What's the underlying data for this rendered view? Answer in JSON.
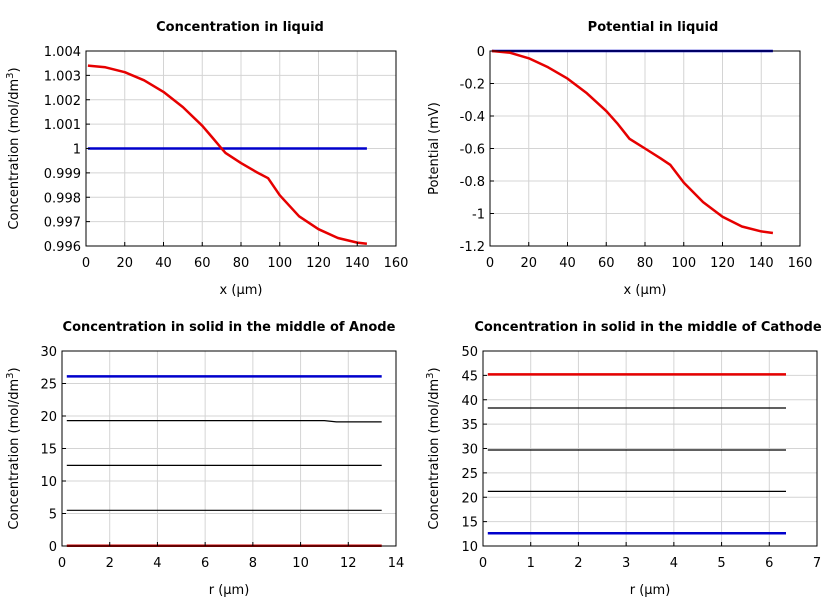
{
  "chart_data": [
    {
      "type": "line",
      "title": "Concentration in liquid",
      "xlabel": "x (μm)",
      "ylabel": "Concentration (mol/dm3)",
      "ylabel_base": "Concentration (mol/dm",
      "ylabel_sup": "3",
      "ylabel_tail": ")",
      "xlim": [
        0,
        160
      ],
      "ylim": [
        0.996,
        1.004
      ],
      "xticks": [
        0,
        20,
        40,
        60,
        80,
        100,
        120,
        140,
        160
      ],
      "xtick_labels": [
        "0",
        "20",
        "40",
        "60",
        "80",
        "100",
        "120",
        "140",
        "160"
      ],
      "yticks": [
        0.996,
        0.997,
        0.998,
        0.999,
        1.0,
        1.001,
        1.002,
        1.003,
        1.004
      ],
      "ytick_labels": [
        "0.996",
        "0.997",
        "0.998",
        "0.999",
        "1",
        "1.001",
        "1.002",
        "1.003",
        "1.004"
      ],
      "grid": true,
      "series": [
        {
          "color": "#0000cc",
          "width": 2.5,
          "x": [
            1,
            145
          ],
          "y": [
            1.0,
            1.0
          ]
        },
        {
          "color": "#e60000",
          "width": 2.5,
          "x": [
            1,
            10,
            20,
            30,
            40,
            50,
            60,
            65,
            70,
            72,
            80,
            88,
            94,
            100,
            110,
            120,
            130,
            140,
            145
          ],
          "y": [
            1.0034,
            1.00333,
            1.00313,
            1.0028,
            1.00232,
            1.0017,
            1.00093,
            1.00047,
            1.0,
            0.99982,
            0.9994,
            0.99903,
            0.99878,
            0.99808,
            0.99722,
            0.99669,
            0.99633,
            0.99614,
            0.99609
          ]
        }
      ]
    },
    {
      "type": "line",
      "title": "Potential in liquid",
      "xlabel": "x (μm)",
      "ylabel": "Potential (mV)",
      "xlim": [
        0,
        160
      ],
      "ylim": [
        -1.2,
        0
      ],
      "xticks": [
        0,
        20,
        40,
        60,
        80,
        100,
        120,
        140,
        160
      ],
      "xtick_labels": [
        "0",
        "20",
        "40",
        "60",
        "80",
        "100",
        "120",
        "140",
        "160"
      ],
      "yticks": [
        -1.2,
        -1.0,
        -0.8,
        -0.6,
        -0.4,
        -0.2,
        0
      ],
      "ytick_labels": [
        "-1.2",
        "-1",
        "-0.8",
        "-0.6",
        "-0.4",
        "-0.2",
        "0"
      ],
      "grid": true,
      "series": [
        {
          "color": "#0000cc",
          "width": 2.5,
          "x": [
            1,
            146
          ],
          "y": [
            0,
            0
          ]
        },
        {
          "color": "#e60000",
          "width": 2.5,
          "x": [
            1,
            10,
            20,
            30,
            40,
            50,
            60,
            66,
            72,
            80,
            88,
            93,
            100,
            110,
            120,
            130,
            140,
            146
          ],
          "y": [
            0,
            -0.01,
            -0.045,
            -0.1,
            -0.17,
            -0.26,
            -0.37,
            -0.45,
            -0.54,
            -0.6,
            -0.66,
            -0.7,
            -0.81,
            -0.93,
            -1.02,
            -1.08,
            -1.11,
            -1.12
          ]
        }
      ]
    },
    {
      "type": "line",
      "title": "Concentration in solid in the middle of Anode",
      "xlabel": "r (μm)",
      "ylabel": "Concentration (mol/dm3)",
      "ylabel_base": "Concentration (mol/dm",
      "ylabel_sup": "3",
      "ylabel_tail": ")",
      "xlim": [
        0,
        14
      ],
      "ylim": [
        0,
        30
      ],
      "xticks": [
        0,
        2,
        4,
        6,
        8,
        10,
        12,
        14
      ],
      "xtick_labels": [
        "0",
        "2",
        "4",
        "6",
        "8",
        "10",
        "12",
        "14"
      ],
      "yticks": [
        0,
        5,
        10,
        15,
        20,
        25,
        30
      ],
      "ytick_labels": [
        "0",
        "5",
        "10",
        "15",
        "20",
        "25",
        "30"
      ],
      "grid": true,
      "series": [
        {
          "color": "#0000cc",
          "width": 2.5,
          "x": [
            0.2,
            13.4
          ],
          "y": [
            26.1,
            26.1
          ]
        },
        {
          "color": "#000000",
          "width": 1.2,
          "x": [
            0.2,
            11.0,
            11.5,
            13.4
          ],
          "y": [
            19.3,
            19.3,
            19.1,
            19.1
          ]
        },
        {
          "color": "#000000",
          "width": 1.2,
          "x": [
            0.2,
            13.4
          ],
          "y": [
            12.4,
            12.4
          ]
        },
        {
          "color": "#000000",
          "width": 1.2,
          "x": [
            0.2,
            13.4
          ],
          "y": [
            5.5,
            5.5
          ]
        },
        {
          "color": "#cc0000",
          "width": 2.5,
          "x": [
            0.2,
            13.4
          ],
          "y": [
            0.05,
            0.05
          ]
        }
      ]
    },
    {
      "type": "line",
      "title": "Concentration in solid in the middle of Cathode",
      "xlabel": "r (μm)",
      "ylabel": "Concentration (mol/dm3)",
      "ylabel_base": "Concentration (mol/dm",
      "ylabel_sup": "3",
      "ylabel_tail": ")",
      "xlim": [
        0,
        7
      ],
      "ylim": [
        10,
        50
      ],
      "xticks": [
        0,
        1,
        2,
        3,
        4,
        5,
        6,
        7
      ],
      "xtick_labels": [
        "0",
        "1",
        "2",
        "3",
        "4",
        "5",
        "6",
        "7"
      ],
      "yticks": [
        10,
        15,
        20,
        25,
        30,
        35,
        40,
        45,
        50
      ],
      "ytick_labels": [
        "10",
        "15",
        "20",
        "25",
        "30",
        "35",
        "40",
        "45",
        "50"
      ],
      "grid": true,
      "series": [
        {
          "color": "#e60000",
          "width": 2.5,
          "x": [
            0.1,
            6.35
          ],
          "y": [
            45.2,
            45.2
          ]
        },
        {
          "color": "#000000",
          "width": 1.2,
          "x": [
            0.1,
            6.35
          ],
          "y": [
            38.3,
            38.3
          ]
        },
        {
          "color": "#000000",
          "width": 1.2,
          "x": [
            0.1,
            6.35
          ],
          "y": [
            29.7,
            29.7
          ]
        },
        {
          "color": "#000000",
          "width": 1.2,
          "x": [
            0.1,
            6.35
          ],
          "y": [
            21.2,
            21.2
          ]
        },
        {
          "color": "#0000cc",
          "width": 2.5,
          "x": [
            0.1,
            6.35
          ],
          "y": [
            12.6,
            12.6
          ]
        }
      ]
    }
  ]
}
